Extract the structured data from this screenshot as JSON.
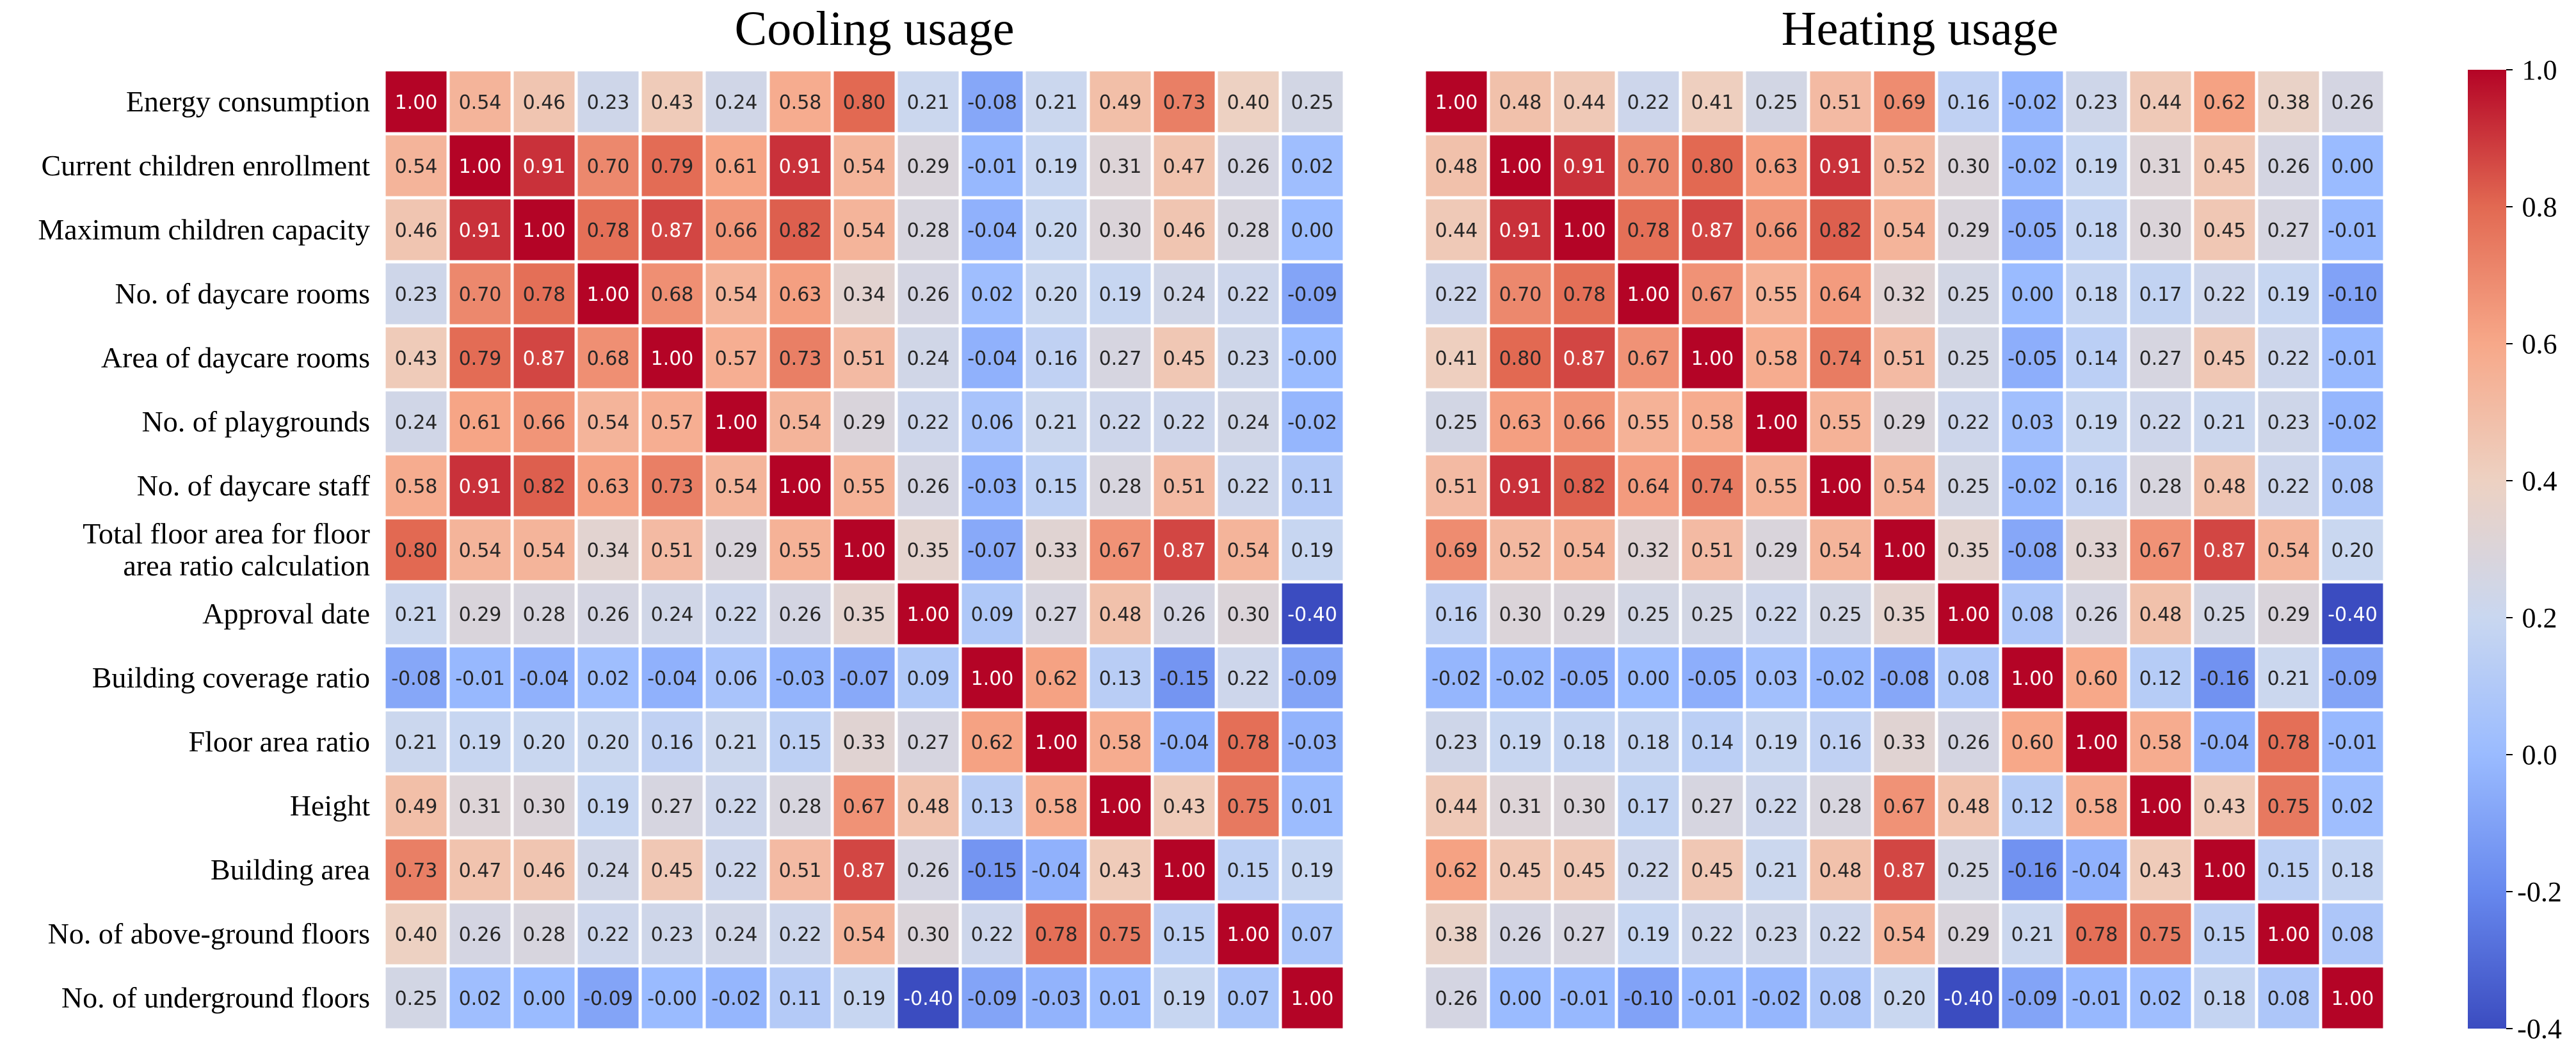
{
  "chart_data": [
    {
      "type": "heatmap",
      "title": "Cooling usage",
      "row_labels": [
        [
          "Energy consumption"
        ],
        [
          "Current children enrollment"
        ],
        [
          "Maximum children capacity"
        ],
        [
          "No. of daycare rooms"
        ],
        [
          "Area of daycare rooms"
        ],
        [
          "No. of playgrounds"
        ],
        [
          "No. of daycare staff"
        ],
        [
          "Total floor area for floor",
          "area ratio calculation"
        ],
        [
          "Approval date"
        ],
        [
          "Building coverage ratio"
        ],
        [
          "Floor area ratio"
        ],
        [
          "Height"
        ],
        [
          "Building area"
        ],
        [
          "No. of above-ground floors"
        ],
        [
          "No. of underground floors"
        ]
      ],
      "values": [
        [
          "1.00",
          "0.54",
          "0.46",
          "0.23",
          "0.43",
          "0.24",
          "0.58",
          "0.80",
          "0.21",
          "-0.08",
          "0.21",
          "0.49",
          "0.73",
          "0.40",
          "0.25"
        ],
        [
          "0.54",
          "1.00",
          "0.91",
          "0.70",
          "0.79",
          "0.61",
          "0.91",
          "0.54",
          "0.29",
          "-0.01",
          "0.19",
          "0.31",
          "0.47",
          "0.26",
          "0.02"
        ],
        [
          "0.46",
          "0.91",
          "1.00",
          "0.78",
          "0.87",
          "0.66",
          "0.82",
          "0.54",
          "0.28",
          "-0.04",
          "0.20",
          "0.30",
          "0.46",
          "0.28",
          "0.00"
        ],
        [
          "0.23",
          "0.70",
          "0.78",
          "1.00",
          "0.68",
          "0.54",
          "0.63",
          "0.34",
          "0.26",
          "0.02",
          "0.20",
          "0.19",
          "0.24",
          "0.22",
          "-0.09"
        ],
        [
          "0.43",
          "0.79",
          "0.87",
          "0.68",
          "1.00",
          "0.57",
          "0.73",
          "0.51",
          "0.24",
          "-0.04",
          "0.16",
          "0.27",
          "0.45",
          "0.23",
          "-0.00"
        ],
        [
          "0.24",
          "0.61",
          "0.66",
          "0.54",
          "0.57",
          "1.00",
          "0.54",
          "0.29",
          "0.22",
          "0.06",
          "0.21",
          "0.22",
          "0.22",
          "0.24",
          "-0.02"
        ],
        [
          "0.58",
          "0.91",
          "0.82",
          "0.63",
          "0.73",
          "0.54",
          "1.00",
          "0.55",
          "0.26",
          "-0.03",
          "0.15",
          "0.28",
          "0.51",
          "0.22",
          "0.11"
        ],
        [
          "0.80",
          "0.54",
          "0.54",
          "0.34",
          "0.51",
          "0.29",
          "0.55",
          "1.00",
          "0.35",
          "-0.07",
          "0.33",
          "0.67",
          "0.87",
          "0.54",
          "0.19"
        ],
        [
          "0.21",
          "0.29",
          "0.28",
          "0.26",
          "0.24",
          "0.22",
          "0.26",
          "0.35",
          "1.00",
          "0.09",
          "0.27",
          "0.48",
          "0.26",
          "0.30",
          "-0.40"
        ],
        [
          "-0.08",
          "-0.01",
          "-0.04",
          "0.02",
          "-0.04",
          "0.06",
          "-0.03",
          "-0.07",
          "0.09",
          "1.00",
          "0.62",
          "0.13",
          "-0.15",
          "0.22",
          "-0.09"
        ],
        [
          "0.21",
          "0.19",
          "0.20",
          "0.20",
          "0.16",
          "0.21",
          "0.15",
          "0.33",
          "0.27",
          "0.62",
          "1.00",
          "0.58",
          "-0.04",
          "0.78",
          "-0.03"
        ],
        [
          "0.49",
          "0.31",
          "0.30",
          "0.19",
          "0.27",
          "0.22",
          "0.28",
          "0.67",
          "0.48",
          "0.13",
          "0.58",
          "1.00",
          "0.43",
          "0.75",
          "0.01"
        ],
        [
          "0.73",
          "0.47",
          "0.46",
          "0.24",
          "0.45",
          "0.22",
          "0.51",
          "0.87",
          "0.26",
          "-0.15",
          "-0.04",
          "0.43",
          "1.00",
          "0.15",
          "0.19"
        ],
        [
          "0.40",
          "0.26",
          "0.28",
          "0.22",
          "0.23",
          "0.24",
          "0.22",
          "0.54",
          "0.30",
          "0.22",
          "0.78",
          "0.75",
          "0.15",
          "1.00",
          "0.07"
        ],
        [
          "0.25",
          "0.02",
          "0.00",
          "-0.09",
          "-0.00",
          "-0.02",
          "0.11",
          "0.19",
          "-0.40",
          "-0.09",
          "-0.03",
          "0.01",
          "0.19",
          "0.07",
          "1.00"
        ]
      ]
    },
    {
      "type": "heatmap",
      "title": "Heating usage",
      "values": [
        [
          "1.00",
          "0.48",
          "0.44",
          "0.22",
          "0.41",
          "0.25",
          "0.51",
          "0.69",
          "0.16",
          "-0.02",
          "0.23",
          "0.44",
          "0.62",
          "0.38",
          "0.26"
        ],
        [
          "0.48",
          "1.00",
          "0.91",
          "0.70",
          "0.80",
          "0.63",
          "0.91",
          "0.52",
          "0.30",
          "-0.02",
          "0.19",
          "0.31",
          "0.45",
          "0.26",
          "0.00"
        ],
        [
          "0.44",
          "0.91",
          "1.00",
          "0.78",
          "0.87",
          "0.66",
          "0.82",
          "0.54",
          "0.29",
          "-0.05",
          "0.18",
          "0.30",
          "0.45",
          "0.27",
          "-0.01"
        ],
        [
          "0.22",
          "0.70",
          "0.78",
          "1.00",
          "0.67",
          "0.55",
          "0.64",
          "0.32",
          "0.25",
          "0.00",
          "0.18",
          "0.17",
          "0.22",
          "0.19",
          "-0.10"
        ],
        [
          "0.41",
          "0.80",
          "0.87",
          "0.67",
          "1.00",
          "0.58",
          "0.74",
          "0.51",
          "0.25",
          "-0.05",
          "0.14",
          "0.27",
          "0.45",
          "0.22",
          "-0.01"
        ],
        [
          "0.25",
          "0.63",
          "0.66",
          "0.55",
          "0.58",
          "1.00",
          "0.55",
          "0.29",
          "0.22",
          "0.03",
          "0.19",
          "0.22",
          "0.21",
          "0.23",
          "-0.02"
        ],
        [
          "0.51",
          "0.91",
          "0.82",
          "0.64",
          "0.74",
          "0.55",
          "1.00",
          "0.54",
          "0.25",
          "-0.02",
          "0.16",
          "0.28",
          "0.48",
          "0.22",
          "0.08"
        ],
        [
          "0.69",
          "0.52",
          "0.54",
          "0.32",
          "0.51",
          "0.29",
          "0.54",
          "1.00",
          "0.35",
          "-0.08",
          "0.33",
          "0.67",
          "0.87",
          "0.54",
          "0.20"
        ],
        [
          "0.16",
          "0.30",
          "0.29",
          "0.25",
          "0.25",
          "0.22",
          "0.25",
          "0.35",
          "1.00",
          "0.08",
          "0.26",
          "0.48",
          "0.25",
          "0.29",
          "-0.40"
        ],
        [
          "-0.02",
          "-0.02",
          "-0.05",
          "0.00",
          "-0.05",
          "0.03",
          "-0.02",
          "-0.08",
          "0.08",
          "1.00",
          "0.60",
          "0.12",
          "-0.16",
          "0.21",
          "-0.09"
        ],
        [
          "0.23",
          "0.19",
          "0.18",
          "0.18",
          "0.14",
          "0.19",
          "0.16",
          "0.33",
          "0.26",
          "0.60",
          "1.00",
          "0.58",
          "-0.04",
          "0.78",
          "-0.01"
        ],
        [
          "0.44",
          "0.31",
          "0.30",
          "0.17",
          "0.27",
          "0.22",
          "0.28",
          "0.67",
          "0.48",
          "0.12",
          "0.58",
          "1.00",
          "0.43",
          "0.75",
          "0.02"
        ],
        [
          "0.62",
          "0.45",
          "0.45",
          "0.22",
          "0.45",
          "0.21",
          "0.48",
          "0.87",
          "0.25",
          "-0.16",
          "-0.04",
          "0.43",
          "1.00",
          "0.15",
          "0.18"
        ],
        [
          "0.38",
          "0.26",
          "0.27",
          "0.19",
          "0.22",
          "0.23",
          "0.22",
          "0.54",
          "0.29",
          "0.21",
          "0.78",
          "0.75",
          "0.15",
          "1.00",
          "0.08"
        ],
        [
          "0.26",
          "0.00",
          "-0.01",
          "-0.10",
          "-0.01",
          "-0.02",
          "0.08",
          "0.20",
          "-0.40",
          "-0.09",
          "-0.01",
          "0.02",
          "0.18",
          "0.08",
          "1.00"
        ]
      ]
    }
  ],
  "colorbar": {
    "vmin": -0.4,
    "vmax": 1.0,
    "ticks": [
      "1.0",
      "0.8",
      "0.6",
      "0.4",
      "0.2",
      "0.0",
      "-0.2",
      "-0.4"
    ],
    "colors": [
      "#3b4cc0",
      "#6788ee",
      "#9abbff",
      "#c9d7f0",
      "#edd1c2",
      "#f7a889",
      "#e26952",
      "#b40426"
    ]
  }
}
